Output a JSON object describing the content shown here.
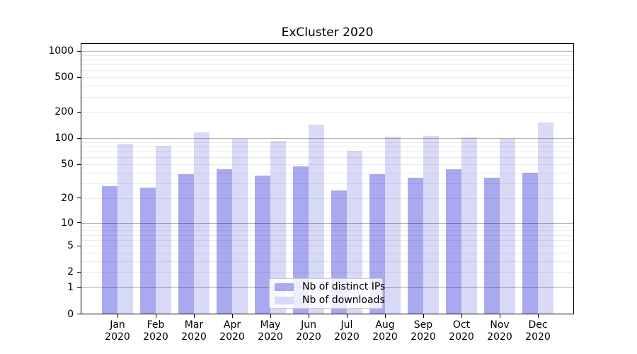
{
  "title": "ExCluster 2020",
  "chart_data": {
    "type": "bar",
    "title": "ExCluster 2020",
    "categories": [
      "Jan",
      "Feb",
      "Mar",
      "Apr",
      "May",
      "Jun",
      "Jul",
      "Aug",
      "Sep",
      "Oct",
      "Nov",
      "Dec"
    ],
    "year_label": "2020",
    "series": [
      {
        "name": "Nb of distinct IPs",
        "color": "#a9a9f0",
        "values": [
          28,
          27,
          39,
          44,
          37,
          48,
          25,
          39,
          35,
          44,
          35,
          40
        ]
      },
      {
        "name": "Nb of downloads",
        "color": "#d9d9f8",
        "values": [
          87,
          82,
          118,
          100,
          94,
          145,
          73,
          105,
          107,
          104,
          99,
          155
        ]
      }
    ],
    "y_scale": "log10(value+1)",
    "y_ticks": [
      0,
      1,
      2,
      5,
      10,
      20,
      50,
      100,
      200,
      500,
      1000
    ],
    "ylim": [
      0,
      1230
    ],
    "xlabel": "",
    "ylabel": "",
    "grid": {
      "major_at": [
        1,
        10,
        100,
        1000
      ],
      "minor_at": "2..9 of each decade",
      "drawn_over_bars": true
    },
    "legend_position": "lower center"
  },
  "colors": {
    "background": "#ffffff",
    "axis": "#000000",
    "grid_major": "rgba(0,0,0,0.30)",
    "grid_minor": "rgba(0,0,0,0.08)",
    "legend_border": "#cccccc",
    "bar_distinct_ips": "#a9a9f0",
    "bar_downloads": "#d9d9f8"
  }
}
